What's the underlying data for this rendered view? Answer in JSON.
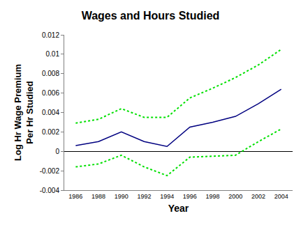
{
  "chart_data": {
    "type": "line",
    "title": "Wages and Hours Studied",
    "x_label": "Year",
    "y_label": "Log Hr Wage Premium\nPer Hr Studied",
    "x": [
      1986,
      1988,
      1990,
      1992,
      1994,
      1996,
      1998,
      2000,
      2002,
      2004
    ],
    "series": [
      {
        "color": "#000080",
        "line_style": "solid",
        "values": [
          0.0006,
          0.001,
          0.002,
          0.001,
          0.0005,
          0.0025,
          0.003,
          0.0036,
          0.0049,
          0.0064
        ]
      },
      {
        "color": "#00e000",
        "line_style": "dot",
        "values": [
          0.0029,
          0.0033,
          0.0044,
          0.0035,
          0.0035,
          0.0055,
          0.0065,
          0.0076,
          0.0089,
          0.0105
        ]
      },
      {
        "color": "#00e000",
        "line_style": "dot",
        "values": [
          -0.0016,
          -0.0013,
          -0.0004,
          -0.0016,
          -0.0025,
          -0.0006,
          -0.0005,
          -0.0004,
          0.001,
          0.0023
        ]
      }
    ],
    "xlim": [
      1985,
      2005
    ],
    "xticks": [
      1986,
      1988,
      1990,
      1992,
      1994,
      1996,
      1998,
      2000,
      2002,
      2004
    ],
    "ylim": [
      -0.004,
      0.012
    ],
    "yticks": [
      -0.004,
      -0.002,
      0,
      0.002,
      0.004,
      0.006,
      0.008,
      0.01,
      0.012
    ],
    "grid": false
  }
}
